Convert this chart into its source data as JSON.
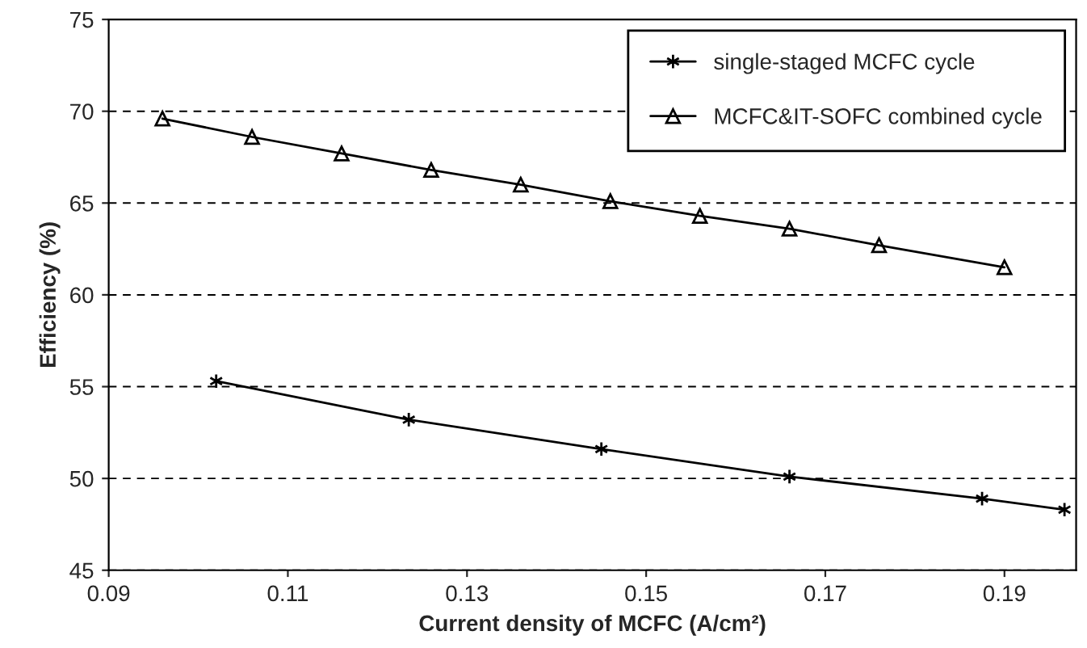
{
  "chart_data": {
    "type": "line",
    "xlabel": "Current density of MCFC (A/cm²)",
    "ylabel": "Efficiency (%)",
    "xlim": [
      0.09,
      0.198
    ],
    "xticks": [
      {
        "value": 0.09,
        "label": "0.09"
      },
      {
        "value": 0.11,
        "label": "0.11"
      },
      {
        "value": 0.13,
        "label": "0.13"
      },
      {
        "value": 0.15,
        "label": "0.15"
      },
      {
        "value": 0.17,
        "label": "0.17"
      },
      {
        "value": 0.19,
        "label": "0.19"
      }
    ],
    "ylim": [
      45,
      75
    ],
    "yticks": [
      45,
      50,
      55,
      60,
      65,
      70,
      75
    ],
    "grid": "y",
    "legend": "top right",
    "series": [
      {
        "name": "single-staged MCFC cycle",
        "color": "#000000",
        "marker": "cross",
        "x": [
          0.102,
          0.1235,
          0.145,
          0.166,
          0.1875,
          0.1967
        ],
        "values": [
          55.3,
          53.2,
          51.6,
          50.1,
          48.9,
          48.3
        ]
      },
      {
        "name": "MCFC&IT-SOFC combined cycle",
        "color": "#000000",
        "marker": "triangle",
        "x": [
          0.096,
          0.106,
          0.116,
          0.126,
          0.136,
          0.146,
          0.156,
          0.166,
          0.176,
          0.19
        ],
        "values": [
          69.6,
          68.6,
          67.7,
          66.8,
          66.0,
          65.1,
          64.3,
          63.6,
          62.7,
          61.5
        ]
      }
    ]
  }
}
